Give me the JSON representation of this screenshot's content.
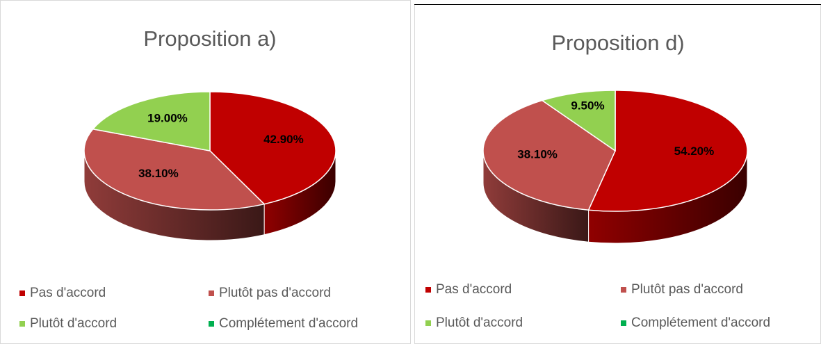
{
  "chart_data": [
    {
      "type": "pie3d",
      "title": "Proposition a)",
      "categories": [
        "Pas d'accord",
        "Plutôt pas d'accord",
        "Plutôt d'accord",
        "Complétement d'accord"
      ],
      "values": [
        42.9,
        38.1,
        19.0,
        0
      ],
      "value_labels": [
        "42.90%",
        "38.10%",
        "19.00%",
        null
      ],
      "colors": [
        "#c00000",
        "#c0504d",
        "#92d050",
        "#00b050"
      ]
    },
    {
      "type": "pie3d",
      "title": "Proposition d)",
      "categories": [
        "Pas d'accord",
        "Plutôt pas d'accord",
        "Plutôt d'accord",
        "Complétement d'accord"
      ],
      "values": [
        54.2,
        38.1,
        9.5,
        0
      ],
      "value_labels": [
        "54.20%",
        "38.10%",
        "9.50%",
        null
      ],
      "colors": [
        "#c00000",
        "#c0504d",
        "#92d050",
        "#00b050"
      ]
    }
  ]
}
